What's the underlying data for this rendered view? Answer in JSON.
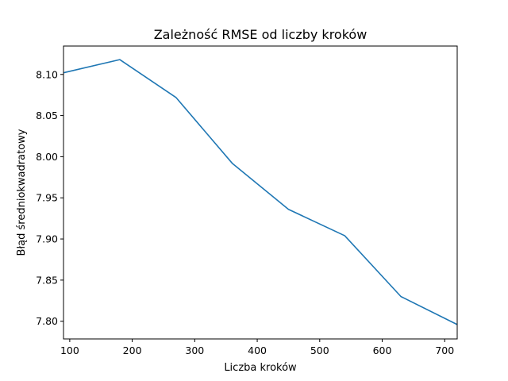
{
  "chart_data": {
    "type": "line",
    "title": "Zależność RMSE od liczby kroków",
    "xlabel": "Liczba kroków",
    "ylabel": "Błąd średniokwadratowy",
    "xlim": [
      90,
      720
    ],
    "ylim": [
      7.7785,
      8.1345
    ],
    "xticks": [
      100,
      200,
      300,
      400,
      500,
      600,
      700
    ],
    "xtick_labels": [
      "100",
      "200",
      "300",
      "400",
      "500",
      "600",
      "700"
    ],
    "yticks": [
      7.8,
      7.85,
      7.9,
      7.95,
      8.0,
      8.05,
      8.1
    ],
    "ytick_labels": [
      "7.80",
      "7.85",
      "7.90",
      "7.95",
      "8.00",
      "8.05",
      "8.10"
    ],
    "grid": false,
    "series": [
      {
        "color": "#1f77b4",
        "x": [
          90,
          180,
          270,
          360,
          450,
          540,
          630,
          720
        ],
        "y": [
          8.102,
          8.118,
          8.072,
          7.992,
          7.936,
          7.904,
          7.83,
          7.796
        ]
      }
    ]
  }
}
